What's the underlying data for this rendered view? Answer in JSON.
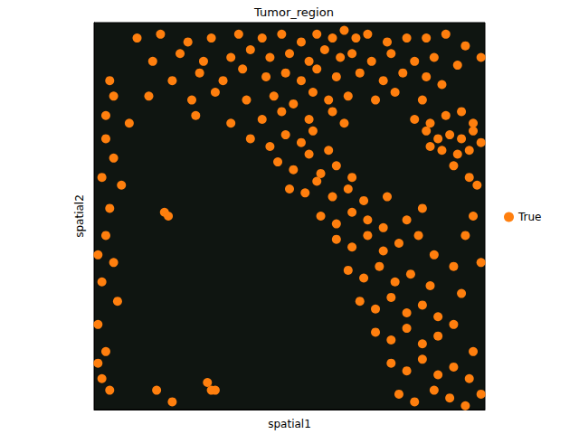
{
  "chart_data": {
    "type": "scatter",
    "title": "Tumor_region",
    "x_label": "spatial1",
    "y_label": "spatial2",
    "xlim": [
      0,
      100
    ],
    "ylim": [
      0,
      100
    ],
    "xticks": [],
    "yticks": [],
    "tick_labels": false,
    "grid": false,
    "legend": "right",
    "series": [
      {
        "name": "True",
        "color": "#ff7f0e",
        "marker": "circle",
        "x": [
          11,
          17,
          24,
          30,
          37,
          43,
          48,
          53,
          57,
          61,
          64,
          67,
          70,
          75,
          80,
          85,
          90,
          95,
          15,
          22,
          28,
          35,
          40,
          45,
          50,
          55,
          59,
          63,
          66,
          71,
          76,
          82,
          87,
          93,
          99,
          20,
          27,
          33,
          38,
          44,
          49,
          53,
          57,
          62,
          68,
          74,
          79,
          85,
          89,
          4,
          5,
          14,
          25,
          31,
          39,
          46,
          51,
          56,
          60,
          65,
          72,
          77,
          84,
          3,
          9,
          26,
          35,
          43,
          48,
          55,
          61,
          64,
          82,
          86,
          90,
          94,
          97,
          85,
          88,
          91,
          94,
          97,
          99,
          86,
          89,
          93,
          96,
          92,
          96,
          98,
          3,
          5,
          2,
          7,
          4,
          3,
          1,
          5,
          2,
          6,
          1,
          3,
          1,
          2,
          4,
          18,
          19,
          40,
          45,
          49,
          53,
          56,
          60,
          47,
          51,
          55,
          58,
          62,
          66,
          50,
          54,
          57,
          61,
          65,
          69,
          75,
          58,
          62,
          66,
          70,
          74,
          80,
          84,
          62,
          66,
          70,
          74,
          78,
          83,
          87,
          65,
          69,
          73,
          77,
          81,
          86,
          92,
          68,
          72,
          76,
          80,
          84,
          88,
          94,
          72,
          76,
          80,
          84,
          88,
          92,
          97,
          76,
          80,
          84,
          88,
          92,
          96,
          78,
          82,
          87,
          91,
          95,
          99,
          16,
          29,
          30,
          31,
          20,
          97,
          99,
          95
        ],
        "y": [
          96,
          97,
          95,
          96,
          97,
          96,
          97,
          95,
          97,
          96,
          98,
          96,
          97,
          95,
          96,
          96,
          97,
          94,
          90,
          92,
          90,
          91,
          93,
          91,
          92,
          90,
          93,
          91,
          92,
          90,
          92,
          90,
          91,
          89,
          91,
          85,
          87,
          85,
          88,
          86,
          87,
          85,
          88,
          86,
          87,
          85,
          87,
          86,
          84,
          85,
          81,
          81,
          80,
          82,
          80,
          81,
          79,
          82,
          80,
          81,
          80,
          82,
          80,
          76,
          74,
          76,
          74,
          75,
          77,
          75,
          77,
          74,
          75,
          74,
          76,
          77,
          74,
          72,
          70,
          71,
          70,
          72,
          69,
          68,
          67,
          66,
          67,
          63,
          60,
          58,
          70,
          65,
          60,
          58,
          52,
          45,
          40,
          38,
          33,
          28,
          22,
          15,
          12,
          8,
          5,
          51,
          50,
          70,
          68,
          71,
          69,
          72,
          67,
          64,
          62,
          66,
          61,
          63,
          60,
          57,
          56,
          59,
          55,
          57,
          54,
          55,
          50,
          48,
          51,
          49,
          47,
          49,
          52,
          44,
          42,
          45,
          41,
          43,
          45,
          40,
          36,
          34,
          37,
          33,
          35,
          32,
          37,
          28,
          26,
          29,
          25,
          27,
          24,
          30,
          20,
          18,
          21,
          17,
          19,
          22,
          15,
          12,
          10,
          13,
          9,
          11,
          8,
          4,
          2,
          5,
          3,
          1,
          4,
          5,
          7,
          5,
          5,
          2,
          50,
          38,
          45
        ]
      }
    ]
  }
}
